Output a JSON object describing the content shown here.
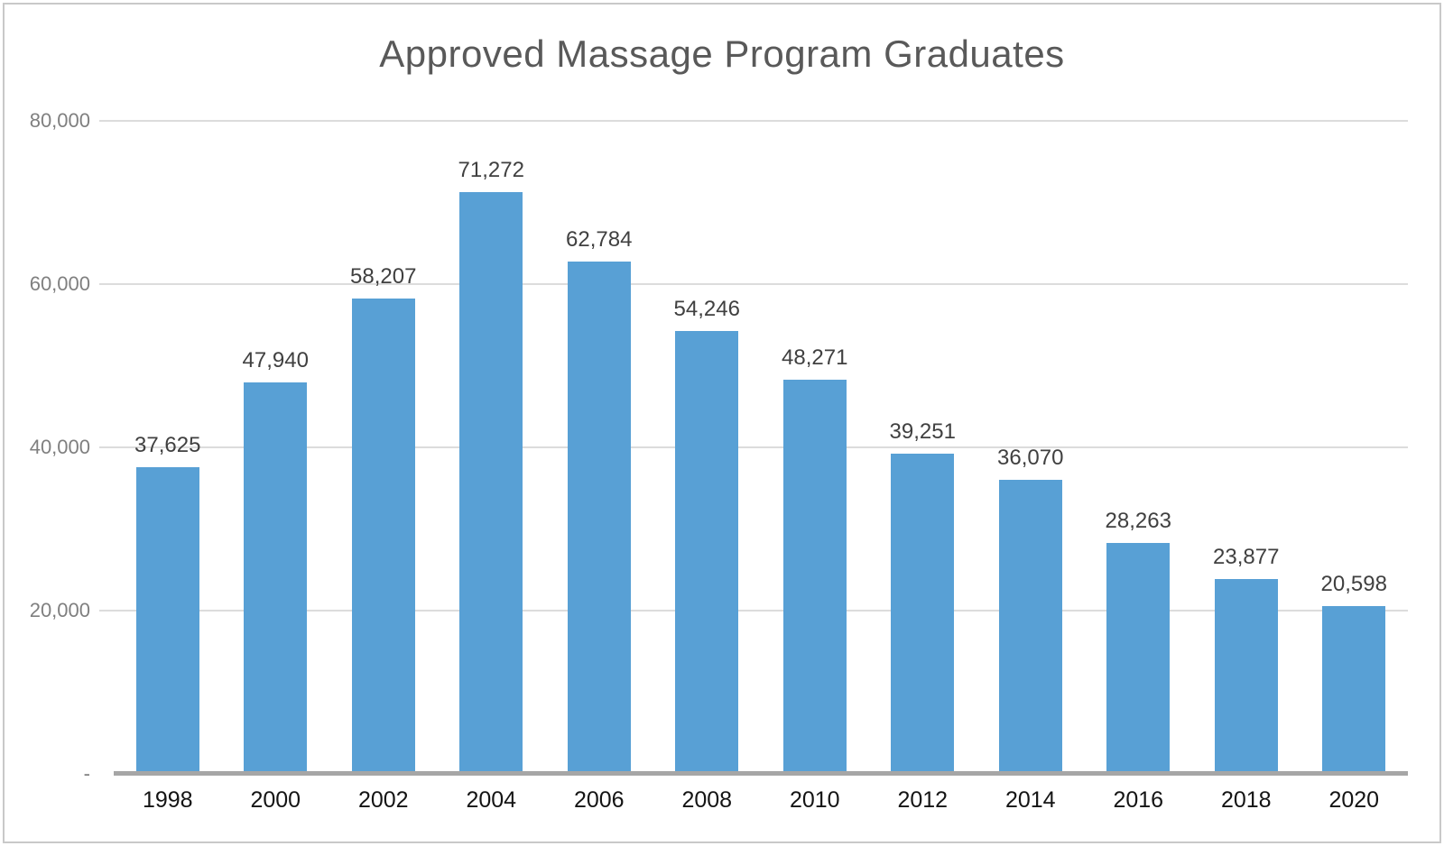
{
  "chart_data": {
    "type": "bar",
    "title": "Approved Massage Program Graduates",
    "categories": [
      "1998",
      "2000",
      "2002",
      "2004",
      "2006",
      "2008",
      "2010",
      "2012",
      "2014",
      "2016",
      "2018",
      "2020"
    ],
    "values": [
      37625,
      47940,
      58207,
      71272,
      62784,
      54246,
      48271,
      39251,
      36070,
      28263,
      23877,
      20598
    ],
    "data_labels": [
      "37,625",
      "47,940",
      "58,207",
      "71,272",
      "62,784",
      "54,246",
      "48,271",
      "39,251",
      "36,070",
      "28,263",
      "23,877",
      "20,598"
    ],
    "xlabel": "",
    "ylabel": "",
    "ylim": [
      0,
      80000
    ],
    "y_ticks": [
      {
        "label": "80,000",
        "value": 80000
      },
      {
        "label": "60,000",
        "value": 60000
      },
      {
        "label": "40,000",
        "value": 40000
      },
      {
        "label": "20,000",
        "value": 20000
      },
      {
        "label": "-",
        "value": 0
      }
    ],
    "grid": true,
    "legend_position": "none",
    "colors": {
      "bar": "#58a0d5",
      "gridline": "#dcdcdc",
      "axis_line": "#a6a6a6",
      "title": "#595959",
      "data_label": "#404040",
      "y_tick_label": "#7f7f7f",
      "x_tick_label": "#141414",
      "border": "#c9c9c9"
    }
  }
}
